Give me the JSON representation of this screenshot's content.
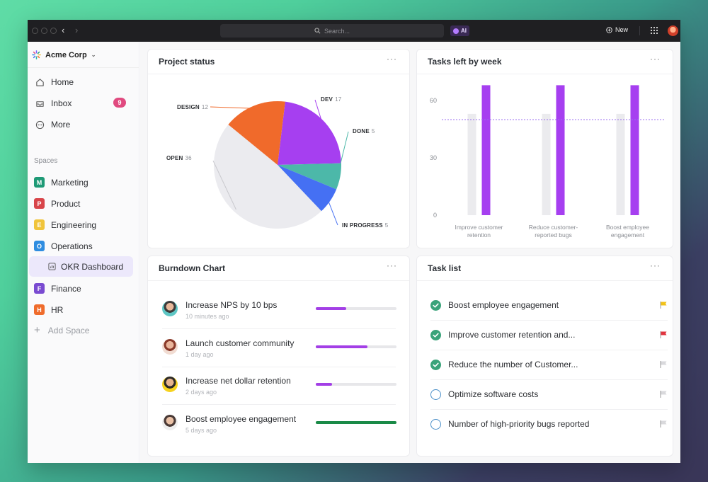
{
  "titlebar": {
    "search_placeholder": "Search...",
    "ai_label": "AI",
    "new_label": "New"
  },
  "sidebar": {
    "workspace": "Acme Corp",
    "nav": [
      {
        "label": "Home",
        "icon": "home-icon"
      },
      {
        "label": "Inbox",
        "icon": "inbox-icon",
        "badge": "9"
      },
      {
        "label": "More",
        "icon": "more-icon"
      }
    ],
    "spaces_label": "Spaces",
    "spaces": [
      {
        "letter": "M",
        "label": "Marketing",
        "color": "#1f9a76"
      },
      {
        "letter": "P",
        "label": "Product",
        "color": "#d8454a"
      },
      {
        "letter": "E",
        "label": "Engineering",
        "color": "#f0c43b"
      },
      {
        "letter": "O",
        "label": "Operations",
        "color": "#2f8de0"
      }
    ],
    "active_item": "OKR Dashboard",
    "spaces_after": [
      {
        "letter": "F",
        "label": "Finance",
        "color": "#7a4bd1"
      },
      {
        "letter": "H",
        "label": "HR",
        "color": "#ef6c2c"
      }
    ],
    "add_space": "Add Space"
  },
  "project_status": {
    "title": "Project status",
    "chart_data": {
      "type": "pie",
      "slices": [
        {
          "label": "DEV",
          "value": 17,
          "color": "#a63ff0"
        },
        {
          "label": "DONE",
          "value": 5,
          "color": "#4cb8a9"
        },
        {
          "label": "IN PROGRESS",
          "value": 5,
          "color": "#4570f3"
        },
        {
          "label": "OPEN",
          "value": 36,
          "color": "#ebebef"
        },
        {
          "label": "DESIGN",
          "value": 12,
          "color": "#f06a2b"
        }
      ]
    }
  },
  "tasks_by_week": {
    "title": "Tasks left by week",
    "chart_data": {
      "type": "bar",
      "categories": [
        "Improve customer retention",
        "Reduce customer-reported bugs",
        "Boost employee engagement"
      ],
      "series": [
        {
          "values": [
            53,
            53,
            53
          ],
          "color": "#ebebee"
        },
        {
          "values": [
            68,
            68,
            68
          ],
          "color": "#a63ff0"
        }
      ],
      "reference_line": 50,
      "yticks": [
        0,
        30,
        60
      ],
      "ylim": [
        0,
        70
      ]
    }
  },
  "burndown": {
    "title": "Burndown Chart",
    "items": [
      {
        "title": "Increase NPS by 10 bps",
        "time": "10 minutes ago",
        "progress": 0.38,
        "color": "#a33fe6"
      },
      {
        "title": "Launch customer community",
        "time": "1 day ago",
        "progress": 0.64,
        "color": "#a33fe6"
      },
      {
        "title": "Increase net dollar retention",
        "time": "2 days ago",
        "progress": 0.2,
        "color": "#a33fe6"
      },
      {
        "title": "Boost employee engagement",
        "time": "5 days ago",
        "progress": 1.0,
        "color": "#1a8a47"
      }
    ]
  },
  "task_list": {
    "title": "Task list",
    "items": [
      {
        "name": "Boost employee engagement",
        "done": true,
        "flag": "#f2c218"
      },
      {
        "name": "Improve customer retention and...",
        "done": true,
        "flag": "#e0343e"
      },
      {
        "name": "Reduce the number of Customer...",
        "done": true,
        "flag": "#d9d9dc"
      },
      {
        "name": "Optimize software costs",
        "done": false,
        "flag": "#d9d9dc"
      },
      {
        "name": "Number of high-priority bugs reported",
        "done": false,
        "flag": "#d9d9dc"
      }
    ]
  }
}
